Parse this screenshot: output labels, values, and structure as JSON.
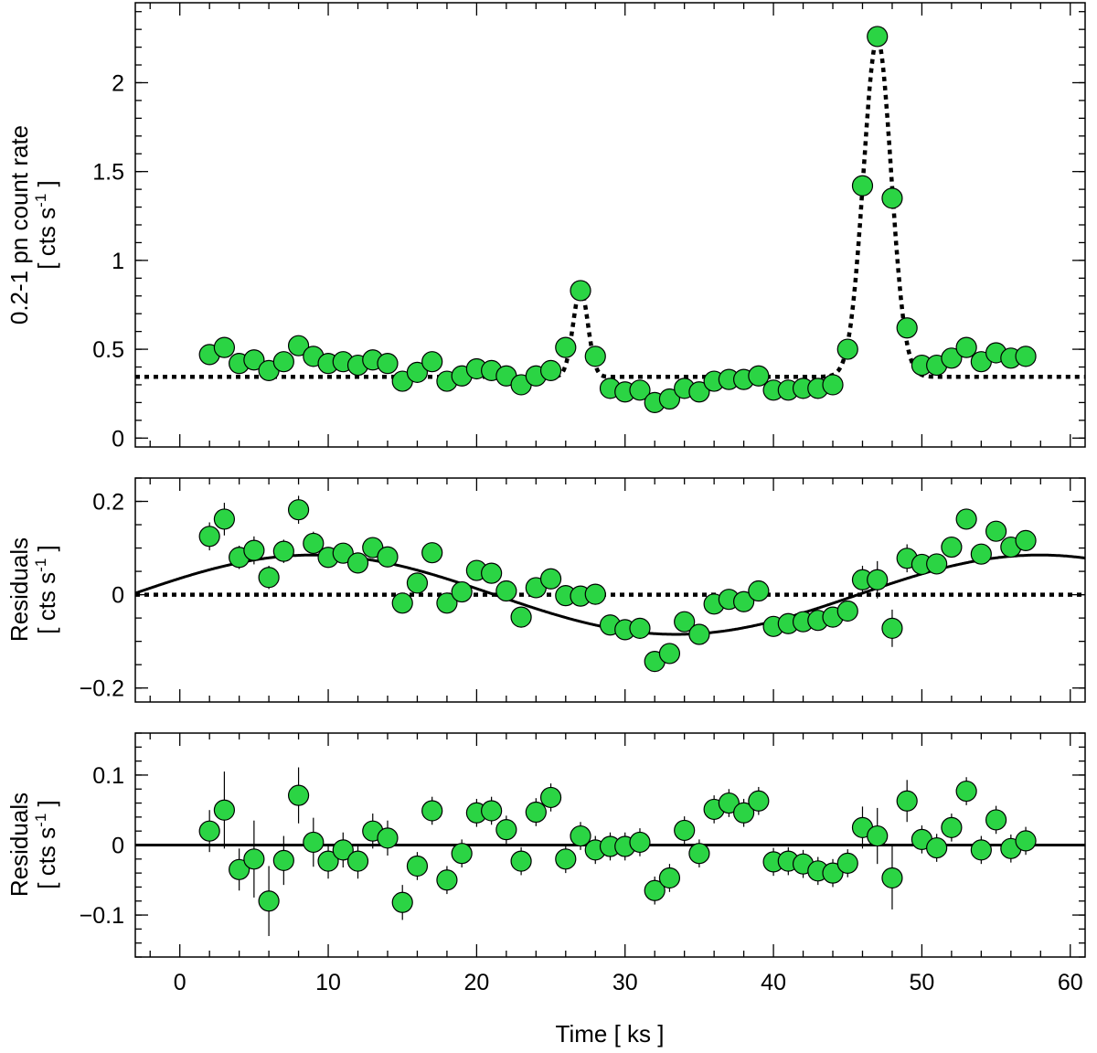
{
  "chart_data": [
    {
      "type": "scatter",
      "panel": "top",
      "ylabel_line1": "0.2-1 pn count rate",
      "ylabel_line2": "[ cts s",
      "ylabel_sup": "-1",
      "ylabel_end": " ]",
      "xlim": [
        -3,
        61
      ],
      "ylim": [
        -0.05,
        2.45
      ],
      "yticks_major": [
        0,
        0.5,
        1,
        1.5,
        2
      ],
      "ytick_labels": [
        "0",
        "0.5",
        "1",
        "1.5",
        "2"
      ],
      "yminor_step": 0.1,
      "model_dotted": {
        "baseline": 0.345,
        "peaks": [
          {
            "center": 27.0,
            "amp": 0.49,
            "sigma": 0.5
          },
          {
            "center": 47.0,
            "amp": 1.9,
            "sigma": 0.93
          }
        ]
      },
      "series": [
        {
          "name": "data",
          "x": [
            2,
            3,
            4,
            5,
            6,
            7,
            8,
            9,
            10,
            11,
            12,
            13,
            14,
            15,
            16,
            17,
            18,
            19,
            20,
            21,
            22,
            23,
            24,
            25,
            26,
            27,
            28,
            29,
            30,
            31,
            32,
            33,
            34,
            35,
            36,
            37,
            38,
            39,
            40,
            41,
            42,
            43,
            44,
            45,
            46,
            47,
            48,
            49,
            50,
            51,
            52,
            53,
            54,
            55,
            56,
            57
          ],
          "y": [
            0.47,
            0.51,
            0.42,
            0.44,
            0.38,
            0.43,
            0.52,
            0.46,
            0.42,
            0.43,
            0.41,
            0.44,
            0.42,
            0.32,
            0.37,
            0.43,
            0.32,
            0.35,
            0.39,
            0.38,
            0.35,
            0.3,
            0.35,
            0.38,
            0.51,
            0.83,
            0.46,
            0.28,
            0.26,
            0.27,
            0.2,
            0.22,
            0.28,
            0.26,
            0.32,
            0.33,
            0.33,
            0.35,
            0.27,
            0.27,
            0.28,
            0.28,
            0.3,
            0.5,
            1.42,
            2.26,
            1.35,
            0.62,
            0.41,
            0.41,
            0.45,
            0.51,
            0.43,
            0.48,
            0.45,
            0.46
          ]
        }
      ]
    },
    {
      "type": "scatter",
      "panel": "middle",
      "ylabel_line1": "Residuals",
      "ylabel_line2": "[ cts s",
      "ylabel_sup": "-1",
      "ylabel_end": " ]",
      "xlim": [
        -3,
        61
      ],
      "ylim": [
        -0.23,
        0.25
      ],
      "yticks_major": [
        -0.2,
        0,
        0.2
      ],
      "ytick_labels": [
        "−0.2",
        "0",
        "0.2"
      ],
      "yminor_step": 0.05,
      "model_dotted_zero": true,
      "model_sine": {
        "amplitude": 0.085,
        "period": 49.0,
        "zero_crossing": -3.3
      },
      "series": [
        {
          "name": "residuals",
          "x": [
            2,
            3,
            4,
            5,
            6,
            7,
            8,
            9,
            10,
            11,
            12,
            13,
            14,
            15,
            16,
            17,
            18,
            19,
            20,
            21,
            22,
            23,
            24,
            25,
            26,
            27,
            28,
            29,
            30,
            31,
            32,
            33,
            34,
            35,
            36,
            37,
            38,
            39,
            40,
            41,
            42,
            43,
            44,
            45,
            46,
            47,
            48,
            49,
            50,
            51,
            52,
            53,
            54,
            55,
            56,
            57
          ],
          "y": [
            0.125,
            0.162,
            0.08,
            0.095,
            0.037,
            0.093,
            0.182,
            0.11,
            0.08,
            0.089,
            0.068,
            0.101,
            0.081,
            -0.018,
            0.025,
            0.09,
            -0.018,
            0.006,
            0.052,
            0.046,
            0.008,
            -0.048,
            0.015,
            0.034,
            -0.002,
            -0.003,
            0.001,
            -0.065,
            -0.075,
            -0.072,
            -0.143,
            -0.126,
            -0.058,
            -0.085,
            -0.02,
            -0.01,
            -0.015,
            0.008,
            -0.068,
            -0.062,
            -0.058,
            -0.055,
            -0.048,
            -0.035,
            0.032,
            0.032,
            -0.072,
            0.078,
            0.065,
            0.066,
            0.102,
            0.162,
            0.087,
            0.136,
            0.102,
            0.116
          ],
          "err": [
            0.03,
            0.035,
            0.025,
            0.03,
            0.025,
            0.025,
            0.03,
            0.025,
            0.02,
            0.02,
            0.02,
            0.02,
            0.02,
            0.02,
            0.02,
            0.02,
            0.02,
            0.02,
            0.02,
            0.02,
            0.02,
            0.02,
            0.02,
            0.02,
            0.02,
            0.02,
            0.02,
            0.02,
            0.02,
            0.02,
            0.02,
            0.02,
            0.02,
            0.02,
            0.02,
            0.02,
            0.02,
            0.02,
            0.02,
            0.02,
            0.02,
            0.02,
            0.02,
            0.02,
            0.03,
            0.04,
            0.04,
            0.03,
            0.02,
            0.02,
            0.02,
            0.02,
            0.02,
            0.02,
            0.02,
            0.02
          ]
        }
      ]
    },
    {
      "type": "scatter",
      "panel": "bottom",
      "ylabel_line1": "Residuals",
      "ylabel_line2": "[ cts s",
      "ylabel_sup": "-1",
      "ylabel_end": " ]",
      "xlabel": "Time [ ks ]",
      "xlim": [
        -3,
        61
      ],
      "ylim": [
        -0.16,
        0.16
      ],
      "yticks_major": [
        -0.1,
        0,
        0.1
      ],
      "ytick_labels": [
        "−0.1",
        "0",
        "0.1"
      ],
      "xticks_major": [
        0,
        10,
        20,
        30,
        40,
        50,
        60
      ],
      "xtick_labels": [
        "0",
        "10",
        "20",
        "30",
        "40",
        "50",
        "60"
      ],
      "yminor_step": 0.02,
      "model_solid_zero": true,
      "series": [
        {
          "name": "residuals",
          "x": [
            2,
            3,
            4,
            5,
            6,
            7,
            8,
            9,
            10,
            11,
            12,
            13,
            14,
            15,
            16,
            17,
            18,
            19,
            20,
            21,
            22,
            23,
            24,
            25,
            26,
            27,
            28,
            29,
            30,
            31,
            32,
            33,
            34,
            35,
            36,
            37,
            38,
            39,
            40,
            41,
            42,
            43,
            44,
            45,
            46,
            47,
            48,
            49,
            50,
            51,
            52,
            53,
            54,
            55,
            56,
            57
          ],
          "y": [
            0.02,
            0.05,
            -0.035,
            -0.02,
            -0.08,
            -0.022,
            0.071,
            0.004,
            -0.023,
            -0.007,
            -0.023,
            0.02,
            0.01,
            -0.082,
            -0.03,
            0.049,
            -0.05,
            -0.012,
            0.046,
            0.049,
            0.022,
            -0.023,
            0.047,
            0.068,
            -0.02,
            0.013,
            -0.007,
            -0.002,
            -0.002,
            0.004,
            -0.065,
            -0.047,
            0.021,
            -0.012,
            0.051,
            0.06,
            0.046,
            0.063,
            -0.024,
            -0.023,
            -0.027,
            -0.037,
            -0.04,
            -0.026,
            0.025,
            0.013,
            -0.047,
            0.063,
            0.008,
            -0.004,
            0.025,
            0.077,
            -0.007,
            0.036,
            -0.005,
            0.006
          ],
          "err": [
            0.03,
            0.055,
            0.03,
            0.055,
            0.05,
            0.035,
            0.04,
            0.035,
            0.025,
            0.025,
            0.025,
            0.025,
            0.025,
            0.025,
            0.02,
            0.02,
            0.02,
            0.02,
            0.02,
            0.02,
            0.02,
            0.02,
            0.02,
            0.02,
            0.02,
            0.02,
            0.02,
            0.02,
            0.02,
            0.02,
            0.02,
            0.02,
            0.02,
            0.02,
            0.02,
            0.02,
            0.02,
            0.02,
            0.02,
            0.02,
            0.02,
            0.02,
            0.02,
            0.02,
            0.03,
            0.04,
            0.045,
            0.03,
            0.02,
            0.02,
            0.02,
            0.02,
            0.02,
            0.02,
            0.02,
            0.02
          ]
        }
      ]
    }
  ]
}
